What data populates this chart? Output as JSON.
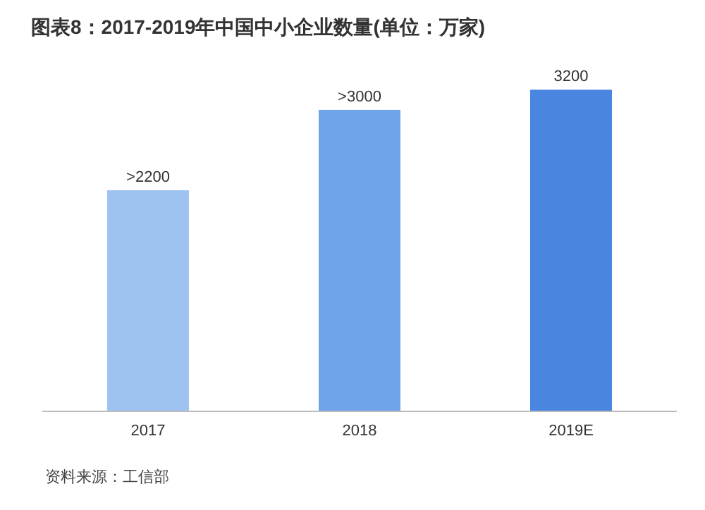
{
  "chart_data": {
    "type": "bar",
    "title": "图表8：2017-2019年中国中小企业数量(单位：万家)",
    "categories": [
      "2017",
      "2018",
      "2019E"
    ],
    "values": [
      2200,
      3000,
      3200
    ],
    "value_labels": [
      ">2200",
      ">3000",
      "3200"
    ],
    "colors": [
      "#9fc3f0",
      "#70a4ea",
      "#4a86df"
    ],
    "annotations": [
      "资料来源：工信部"
    ]
  }
}
